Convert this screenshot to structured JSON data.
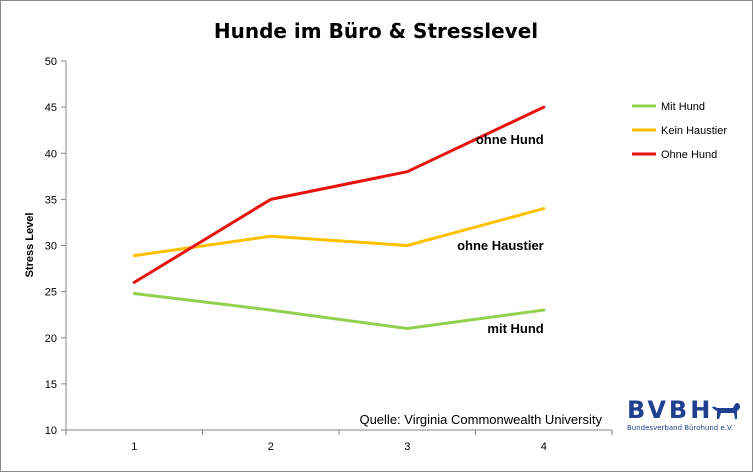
{
  "chart_data": {
    "type": "line",
    "title": "Hunde im Büro & Stresslevel",
    "xlabel": "",
    "ylabel": "Stress Level",
    "categories": [
      "1",
      "2",
      "3",
      "4"
    ],
    "ylim": [
      10,
      50
    ],
    "yticks": [
      10,
      15,
      20,
      25,
      30,
      35,
      40,
      45,
      50
    ],
    "grid": {
      "horizontal": false,
      "vertical": false
    },
    "legend_position": "right",
    "series": [
      {
        "name": "Mit Hund",
        "color": "#92d050",
        "values": [
          24.8,
          23,
          21,
          23
        ]
      },
      {
        "name": "Kein Haustier",
        "color": "#ffc000",
        "values": [
          28.9,
          31,
          30,
          34
        ]
      },
      {
        "name": "Ohne Hund",
        "color": "#e8120c",
        "values": [
          26,
          35,
          38,
          45
        ]
      }
    ],
    "annotations": [
      {
        "text": "ohne Hund",
        "x": 4,
        "y": 41
      },
      {
        "text": "ohne Haustier",
        "x": 4,
        "y": 29.5
      },
      {
        "text": "mit Hund",
        "x": 4,
        "y": 20.5
      }
    ],
    "source": "Quelle: Virginia Commonwealth University"
  },
  "logo": {
    "text": "BVBH",
    "subtitle": "Bundesverband Bürohund e.V.",
    "color": "#1f3f8f",
    "icon": "dog-icon"
  }
}
